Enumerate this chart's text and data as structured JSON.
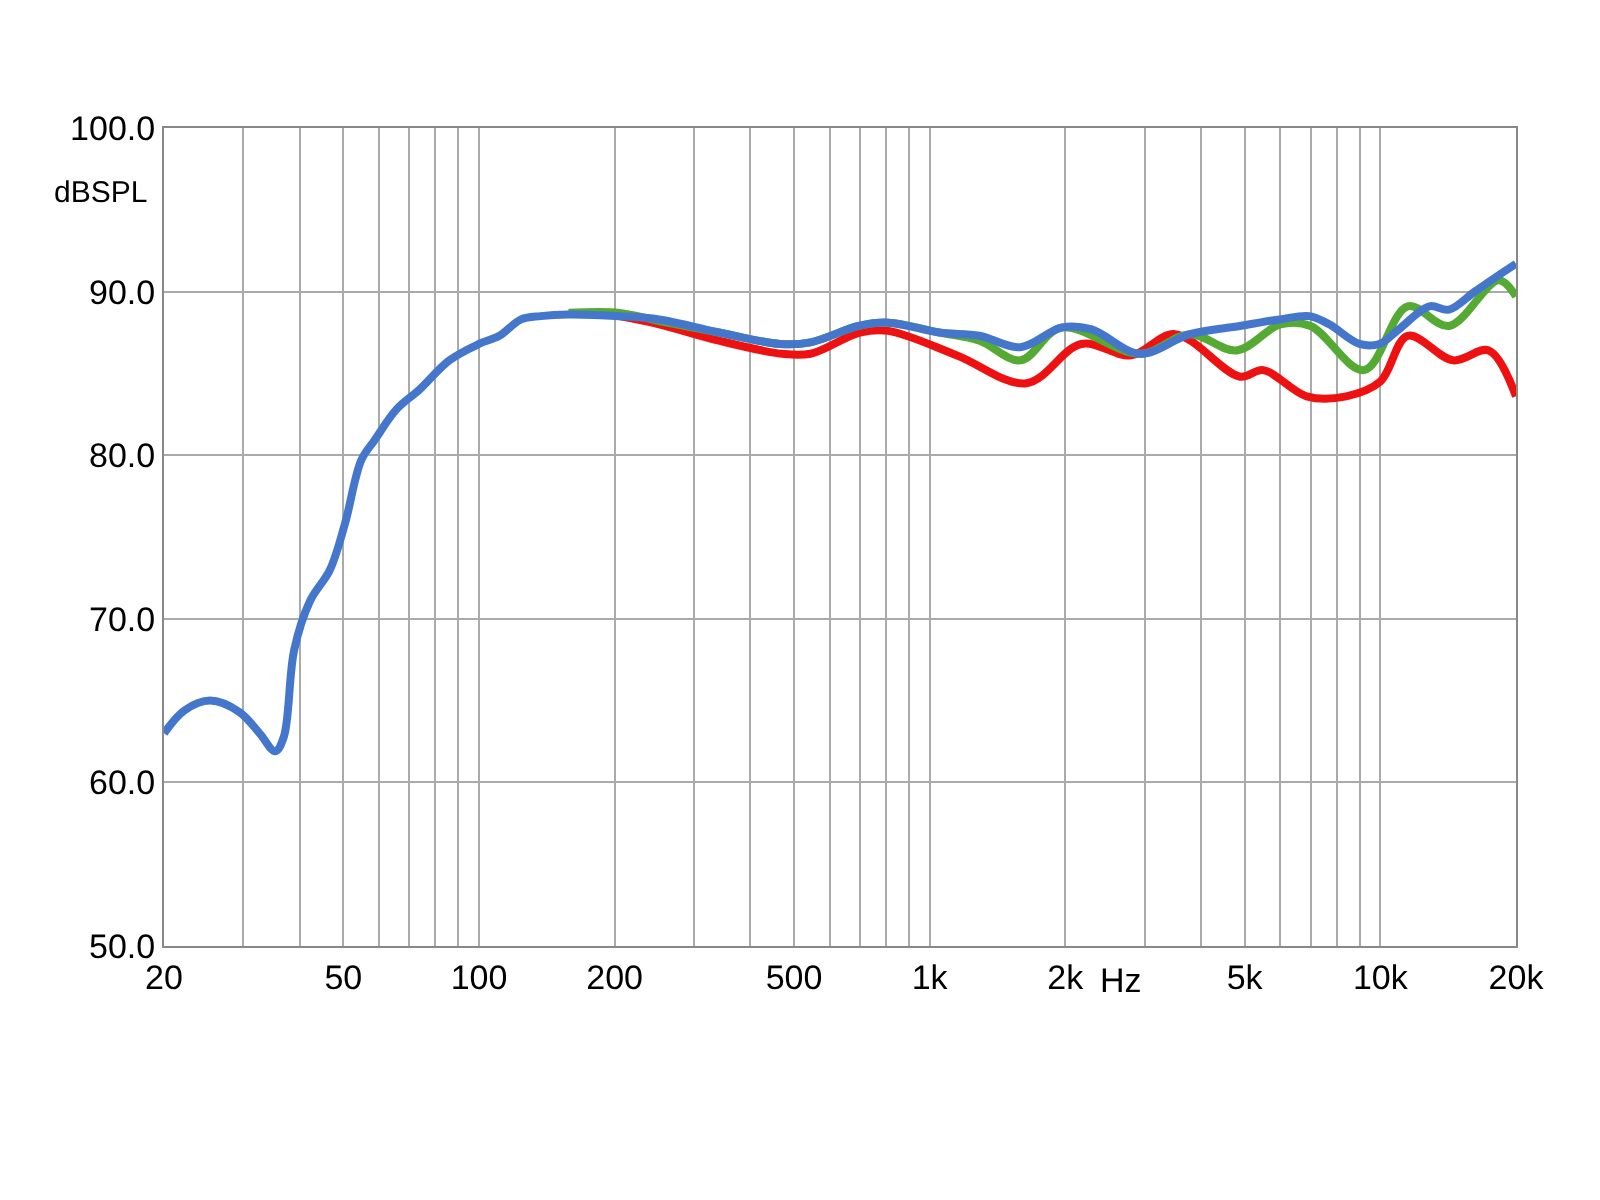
{
  "chart_data": {
    "type": "line",
    "xlabel": "Hz",
    "ylabel": "dBSPL",
    "log": "x",
    "grid": true,
    "marker": "none",
    "line_style": "solid",
    "xlim": [
      20,
      20000
    ],
    "ylim": [
      50,
      100
    ],
    "xticks": [
      20,
      {
        "value": 30,
        "label": null
      },
      {
        "value": 40,
        "label": null
      },
      50,
      {
        "value": 60,
        "label": null
      },
      {
        "value": 70,
        "label": null
      },
      {
        "value": 80,
        "label": null
      },
      {
        "value": 90,
        "label": null
      },
      100,
      200,
      {
        "value": 300,
        "label": null
      },
      {
        "value": 400,
        "label": null
      },
      500,
      {
        "value": 600,
        "label": null
      },
      {
        "value": 700,
        "label": null
      },
      {
        "value": 800,
        "label": null
      },
      {
        "value": 900,
        "label": null
      },
      {
        "value": 1000,
        "label": "1k"
      },
      {
        "value": 2000,
        "label": "2k"
      },
      {
        "value": 3000,
        "label": null
      },
      {
        "value": 4000,
        "label": null
      },
      {
        "value": 5000,
        "label": "5k"
      },
      {
        "value": 6000,
        "label": null
      },
      {
        "value": 7000,
        "label": null
      },
      {
        "value": 8000,
        "label": null
      },
      {
        "value": 9000,
        "label": null
      },
      {
        "value": 10000,
        "label": "10k"
      },
      {
        "value": 20000,
        "label": "20k"
      }
    ],
    "yticks": [
      {
        "value": 50,
        "label": "50.0"
      },
      {
        "value": 60,
        "label": "60.0"
      },
      {
        "value": 70,
        "label": "70.0"
      },
      {
        "value": 80,
        "label": "80.0"
      },
      {
        "value": 90,
        "label": "90.0"
      },
      {
        "value": 100,
        "label": "100.0"
      }
    ],
    "series": [
      {
        "color": "#ee1111",
        "x": [
          205,
          251,
          341,
          470,
          544,
          700,
          810,
          1150,
          1640,
          2170,
          2800,
          3500,
          4880,
          5500,
          6860,
          8400,
          10000,
          11500,
          14500,
          17400,
          20000
        ],
        "values": [
          88.5,
          88.0,
          87.0,
          86.2,
          86.2,
          87.5,
          87.6,
          86.1,
          84.4,
          86.8,
          86.1,
          87.4,
          84.8,
          85.2,
          83.6,
          83.6,
          84.5,
          87.3,
          85.8,
          86.4,
          83.6
        ]
      },
      {
        "color": "#55aa33",
        "x": [
          158,
          205,
          251,
          341,
          466,
          544,
          696,
          810,
          1050,
          1290,
          1590,
          1960,
          2930,
          3780,
          4800,
          6000,
          7000,
          9200,
          11500,
          14200,
          18300,
          20000
        ],
        "values": [
          88.7,
          88.7,
          88.2,
          87.5,
          86.8,
          86.9,
          87.9,
          88.1,
          87.5,
          87.0,
          85.8,
          87.8,
          86.2,
          87.4,
          86.4,
          88.0,
          87.9,
          85.2,
          89.1,
          87.9,
          90.7,
          89.7
        ]
      },
      {
        "color": "#4477cc",
        "x": [
          20,
          22.2,
          25.3,
          29.4,
          32.6,
          35.3,
          36.9,
          38.9,
          42.2,
          46.7,
          50.4,
          54.8,
          58.6,
          65.6,
          73.7,
          86,
          100,
          111,
          124,
          137,
          158,
          205,
          251,
          341,
          466,
          544,
          696,
          810,
          1050,
          1290,
          1590,
          1960,
          2280,
          2930,
          3780,
          4880,
          5980,
          6960,
          7700,
          8990,
          9950,
          11000,
          12840,
          14200,
          16200,
          18300,
          20000
        ],
        "values": [
          63.0,
          64.4,
          65.0,
          64.3,
          63.0,
          61.9,
          62.8,
          68.1,
          71.1,
          73.0,
          75.8,
          79.7,
          80.9,
          82.8,
          84.0,
          85.8,
          86.8,
          87.3,
          88.3,
          88.5,
          88.6,
          88.5,
          88.3,
          87.5,
          86.8,
          86.9,
          87.9,
          88.1,
          87.5,
          87.3,
          86.6,
          87.8,
          87.7,
          86.2,
          87.4,
          87.9,
          88.3,
          88.5,
          88.0,
          86.8,
          86.8,
          87.7,
          89.1,
          88.9,
          90.0,
          91.0,
          91.7
        ]
      }
    ]
  }
}
